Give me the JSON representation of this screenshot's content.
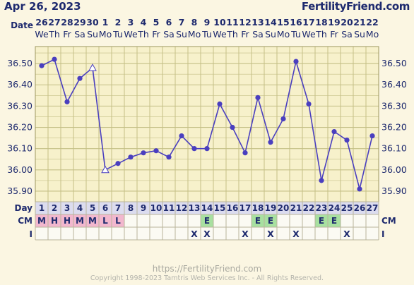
{
  "header": {
    "date": "Apr 26, 2023",
    "brand": "FertilityFriend.com"
  },
  "footer": {
    "url": "https://FertilityFriend.com",
    "copyright": "Copyright 1998-2023 Tamtris Web Services Inc. - All Rights Reserved."
  },
  "chart_data": {
    "type": "line",
    "title": "",
    "date_row_label": "Date",
    "dates": [
      "26",
      "27",
      "28",
      "29",
      "30",
      "1",
      "2",
      "3",
      "4",
      "5",
      "6",
      "7",
      "8",
      "9",
      "10",
      "11",
      "12",
      "13",
      "14",
      "15",
      "16",
      "17",
      "18",
      "19",
      "20",
      "21",
      "22"
    ],
    "weekdays": [
      "We",
      "Th",
      "Fr",
      "Sa",
      "Su",
      "Mo",
      "Tu",
      "We",
      "Th",
      "Fr",
      "Sa",
      "Su",
      "Mo",
      "Tu",
      "We",
      "Th",
      "Fr",
      "Sa",
      "Su",
      "Mo",
      "Tu",
      "We",
      "Th",
      "Fr",
      "Sa",
      "Su",
      "Mo"
    ],
    "day_row_label": "Day",
    "days": [
      "1",
      "2",
      "3",
      "4",
      "5",
      "6",
      "7",
      "8",
      "9",
      "10",
      "11",
      "12",
      "13",
      "14",
      "15",
      "16",
      "17",
      "18",
      "19",
      "20",
      "21",
      "22",
      "23",
      "24",
      "25",
      "26",
      "27"
    ],
    "y_ticks": [
      "35.90",
      "36.00",
      "36.10",
      "36.20",
      "36.30",
      "36.40",
      "36.50"
    ],
    "ylim": [
      35.85,
      36.58
    ],
    "temperatures": [
      36.49,
      36.52,
      36.32,
      36.43,
      36.48,
      36.0,
      36.03,
      36.06,
      36.08,
      36.09,
      36.06,
      36.16,
      36.1,
      36.1,
      36.31,
      36.2,
      36.08,
      36.34,
      36.13,
      36.24,
      36.51,
      36.31,
      35.95,
      36.18,
      36.14,
      35.91,
      36.16
    ],
    "open_markers": [
      4,
      5
    ],
    "cm_label": "CM",
    "cm": [
      "M",
      "H",
      "H",
      "M",
      "M",
      "L",
      "L",
      "",
      "",
      "",
      "",
      "",
      "",
      "E",
      "",
      "",
      "",
      "E",
      "E",
      "",
      "",
      "",
      "E",
      "E",
      "",
      "",
      ""
    ],
    "i_label": "I",
    "intercourse": [
      "",
      "",
      "",
      "",
      "",
      "",
      "",
      "",
      "",
      "",
      "",
      "",
      "X",
      "X",
      "",
      "",
      "X",
      "",
      "X",
      "",
      "X",
      "",
      "",
      "",
      "X",
      "",
      ""
    ],
    "colors": {
      "line": "#4a3fbf",
      "grid": "#c4bf86",
      "plot_bg": "#f7f1cb",
      "text": "#1e2a6e",
      "cm_mens": "#f2b7ce",
      "cm_egg": "#a8e0a0",
      "day_bg": "#dcdcef"
    }
  }
}
